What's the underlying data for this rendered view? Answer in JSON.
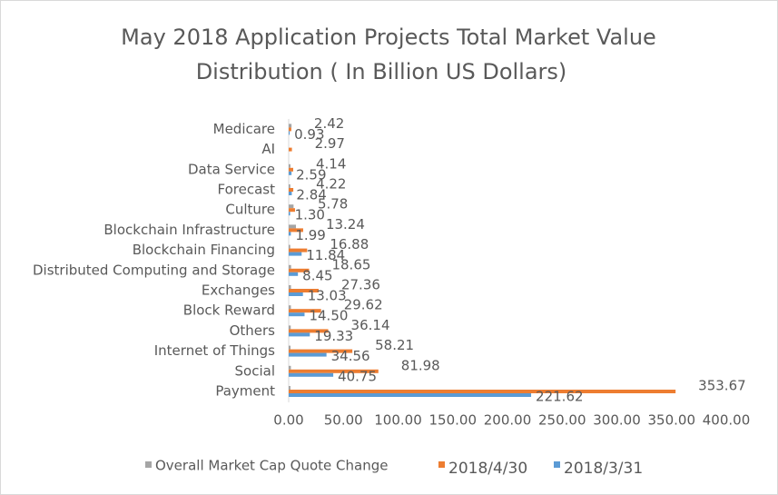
{
  "chart_data": {
    "type": "hbar",
    "title": "May 2018 Application Projects Total Market Value",
    "subtitle": "Distribution ( In Billion US Dollars)",
    "categories": [
      "Payment",
      "Social",
      "Internet of Things",
      "Others",
      "Block Reward",
      "Exchanges",
      "Distributed Computing and Storage",
      "Blockchain Financing",
      "Blockchain Infrastructure",
      "Culture",
      "Forecast",
      "Data Service",
      "AI",
      "Medicare"
    ],
    "series": [
      {
        "name": "Overall Market Cap Quote Change",
        "color": "#a5a5a5",
        "values": [
          1.6,
          2.01,
          1.68,
          1.87,
          2.04,
          2.1,
          2.21,
          1.43,
          6.65,
          4.45,
          1.49,
          1.6,
          null,
          2.6
        ]
      },
      {
        "name": "2018/4/30",
        "color": "#ed7d31",
        "values": [
          353.67,
          81.98,
          58.21,
          36.14,
          29.62,
          27.36,
          18.65,
          16.88,
          13.24,
          5.78,
          4.22,
          4.14,
          2.97,
          2.42
        ],
        "value_labels": [
          "353.67",
          "81.98",
          "58.21",
          "36.14",
          "29.62",
          "27.36",
          "18.65",
          "16.88",
          "13.24",
          "5.78",
          "4.22",
          "4.14",
          "2.97",
          "2.42"
        ]
      },
      {
        "name": "2018/3/31",
        "color": "#5b9bd5",
        "values": [
          221.62,
          40.75,
          34.56,
          19.33,
          14.5,
          13.03,
          8.45,
          11.84,
          1.99,
          1.3,
          2.84,
          2.59,
          null,
          0.93
        ],
        "value_labels": [
          "221.62",
          "40.75",
          "34.56",
          "19.33",
          "14.50",
          "13.03",
          "8.45",
          "11.84",
          "1.99",
          "1.30",
          "2.84",
          "2.59",
          null,
          "0.93"
        ]
      }
    ],
    "xlim": [
      0,
      400
    ],
    "xticks": [
      {
        "value": 0,
        "label": "0.00"
      },
      {
        "value": 50,
        "label": "50.00"
      },
      {
        "value": 100,
        "label": "100.00"
      },
      {
        "value": 150,
        "label": "150.00"
      },
      {
        "value": 200,
        "label": "200.00"
      },
      {
        "value": 250,
        "label": "250.00"
      },
      {
        "value": 300,
        "label": "300.00"
      },
      {
        "value": 350,
        "label": "350.00"
      },
      {
        "value": 400,
        "label": "400.00"
      }
    ],
    "legend": "bottom"
  }
}
